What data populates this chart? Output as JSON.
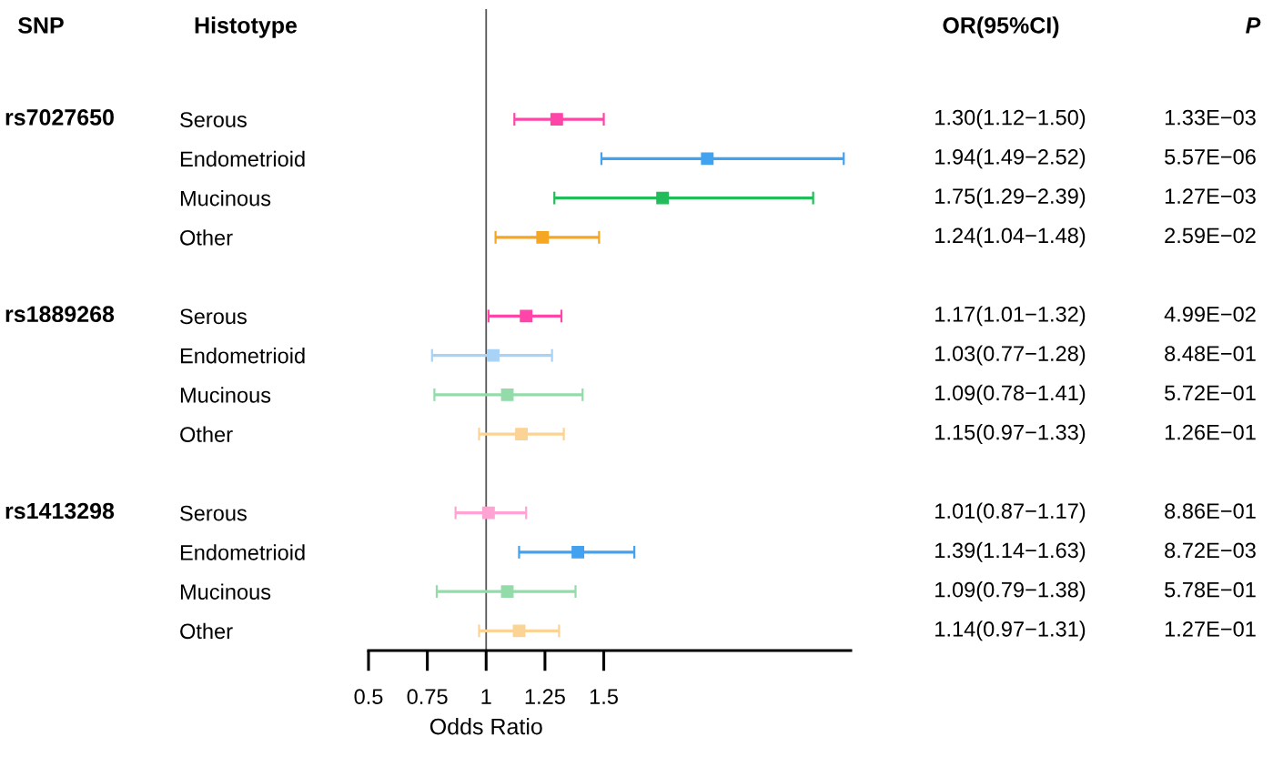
{
  "chart_data": {
    "type": "scatter",
    "orientation": "horizontal",
    "xlabel": "Odds Ratio",
    "categories": [
      "Serous",
      "Endometrioid",
      "Mucinous",
      "Other",
      null,
      "Serous",
      "Endometrioid",
      "Mucinous",
      "Other",
      null,
      "Serous",
      "Endometrioid",
      "Mucinous",
      "Other"
    ],
    "values": [
      1.3,
      1.94,
      1.75,
      1.24,
      null,
      1.17,
      1.03,
      1.09,
      1.15,
      null,
      1.01,
      1.39,
      1.09,
      1.14
    ],
    "errors": [
      [
        1.12,
        1.5
      ],
      [
        1.49,
        2.52
      ],
      [
        1.29,
        2.39
      ],
      [
        1.04,
        1.48
      ],
      null,
      [
        1.01,
        1.32
      ],
      [
        0.77,
        1.28
      ],
      [
        0.78,
        1.41
      ],
      [
        0.97,
        1.33
      ],
      null,
      [
        0.87,
        1.17
      ],
      [
        1.14,
        1.63
      ],
      [
        0.79,
        1.38
      ],
      [
        0.97,
        1.31
      ]
    ],
    "colors": [
      "#ff45a8",
      "#42a2f0",
      "#22bd5a",
      "#f5a623",
      null,
      "#ff45a8",
      "#a9d2f7",
      "#93dcaa",
      "#fbd394",
      null,
      "#ffa3d4",
      "#42a2f0",
      "#93dcaa",
      "#fbd394"
    ],
    "value_labels": [
      "1.30(1.12−1.50)",
      "1.94(1.49−2.52)",
      "1.75(1.29−2.39)",
      "1.24(1.04−1.48)",
      null,
      "1.17(1.01−1.32)",
      "1.03(0.77−1.28)",
      "1.09(0.78−1.41)",
      "1.15(0.97−1.33)",
      null,
      "1.01(0.87−1.17)",
      "1.39(1.14−1.63)",
      "1.09(0.79−1.38)",
      "1.14(0.97−1.31)"
    ],
    "annotations": [
      "SNP",
      "Histotype",
      "OR(95%CI)",
      "P",
      "rs7027650",
      "rs1889268",
      "rs1413298",
      "1.33E−03",
      "5.57E−06",
      "1.27E−03",
      "2.59E−02",
      "4.99E−02",
      "8.48E−01",
      "5.72E−01",
      "1.26E−01",
      "8.86E−01",
      "8.72E−03",
      "5.78E−01",
      "1.27E−01"
    ],
    "xlim": [
      0.5,
      2.55
    ],
    "xticks": [
      0.5,
      0.75,
      1,
      1.25,
      1.5
    ],
    "ref_lines": [
      {
        "axis": "x",
        "value": 1,
        "color": "#555555"
      }
    ],
    "marker": "square",
    "grid": false
  }
}
